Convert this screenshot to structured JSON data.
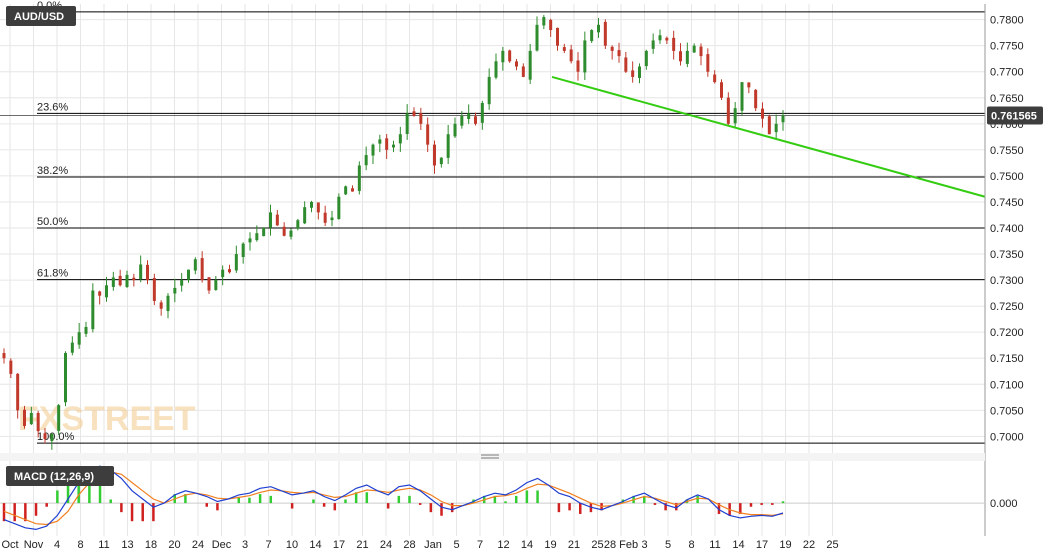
{
  "chart_data": [
    {
      "type": "candlestick",
      "title": "AUD/USD",
      "watermark": "FXSTREET",
      "colors": {
        "up": "#2e8b2e",
        "down": "#c0392b",
        "grid": "#e6e6e6",
        "trend": "#33cc11",
        "fib": "#000000"
      },
      "price_tag": "0.761565",
      "ylim": [
        0.697,
        0.783
      ],
      "y_ticks": [
        "0.7000",
        "0.7050",
        "0.7100",
        "0.7150",
        "0.7200",
        "0.7250",
        "0.7300",
        "0.7350",
        "0.7400",
        "0.7450",
        "0.7500",
        "0.7550",
        "0.7600",
        "0.7650",
        "0.7700",
        "0.7750",
        "0.7800"
      ],
      "x_ticks": [
        "Oct",
        "Nov",
        "4",
        "8",
        "11",
        "13",
        "18",
        "20",
        "24",
        "Dec",
        "3",
        "7",
        "10",
        "14",
        "17",
        "21",
        "24",
        "28",
        "Jan",
        "5",
        "7",
        "12",
        "14",
        "19",
        "21",
        "25",
        "28 Feb",
        "3",
        "5",
        "8",
        "11",
        "14",
        "17",
        "19",
        "22",
        "25"
      ],
      "fibonacci": [
        {
          "label": "0.0%",
          "price": 0.7815
        },
        {
          "label": "23.6%",
          "price": 0.762
        },
        {
          "label": "38.2%",
          "price": 0.7498
        },
        {
          "label": "50.0%",
          "price": 0.74
        },
        {
          "label": "61.8%",
          "price": 0.7301
        },
        {
          "label": "100.0%",
          "price": 0.6987
        }
      ],
      "trendline": {
        "start_price": 0.769,
        "end_price": 0.746
      },
      "closes": [
        0.715,
        0.712,
        0.705,
        0.702,
        0.7045,
        0.701,
        0.6995,
        0.7005,
        0.706,
        0.716,
        0.718,
        0.72,
        0.721,
        0.728,
        0.727,
        0.729,
        0.7305,
        0.729,
        0.731,
        0.73,
        0.733,
        0.73,
        0.726,
        0.7245,
        0.727,
        0.7285,
        0.73,
        0.732,
        0.734,
        0.73,
        0.728,
        0.73,
        0.732,
        0.7315,
        0.735,
        0.737,
        0.738,
        0.739,
        0.74,
        0.743,
        0.7405,
        0.7385,
        0.7395,
        0.7415,
        0.744,
        0.745,
        0.743,
        0.741,
        0.742,
        0.746,
        0.748,
        0.747,
        0.752,
        0.754,
        0.756,
        0.757,
        0.755,
        0.756,
        0.758,
        0.762,
        0.7615,
        0.76,
        0.756,
        0.752,
        0.7535,
        0.758,
        0.76,
        0.7615,
        0.762,
        0.76,
        0.764,
        0.769,
        0.772,
        0.774,
        0.772,
        0.771,
        0.769,
        0.774,
        0.779,
        0.7805,
        0.778,
        0.775,
        0.774,
        0.772,
        0.77,
        0.776,
        0.778,
        0.779,
        0.775,
        0.774,
        0.773,
        0.77,
        0.769,
        0.771,
        0.774,
        0.776,
        0.777,
        0.776,
        0.774,
        0.772,
        0.774,
        0.775,
        0.773,
        0.77,
        0.768,
        0.765,
        0.76,
        0.763,
        0.768,
        0.767,
        0.763,
        0.761,
        0.758,
        0.76,
        0.7616
      ],
      "macd": {
        "label": "MACD (12,26,9)",
        "zero_label": "0.000",
        "line": [
          -0.002,
          -0.0025,
          -0.003,
          -0.0032,
          -0.0028,
          -0.0015,
          0.0005,
          0.0025,
          0.004,
          0.0045,
          0.004,
          0.003,
          0.0015,
          0.0005,
          -0.0005,
          0.0,
          0.001,
          0.0015,
          0.0012,
          0.0008,
          0.0002,
          0.0005,
          0.001,
          0.0012,
          0.0018,
          0.002,
          0.0015,
          0.001,
          0.0012,
          0.0015,
          0.0008,
          0.0003,
          0.001,
          0.0018,
          0.0022,
          0.0015,
          0.001,
          0.002,
          0.0022,
          0.0015,
          0.0005,
          -0.0005,
          -0.0008,
          -0.0003,
          0.0002,
          0.0008,
          0.0012,
          0.001,
          0.0016,
          0.0025,
          0.003,
          0.0022,
          0.0012,
          0.0008,
          0.0,
          -0.0005,
          -0.0008,
          -0.0003,
          0.0002,
          0.0008,
          0.0012,
          0.0005,
          -0.0002,
          -0.0006,
          0.0004,
          0.001,
          0.0005,
          -0.0008,
          -0.0015,
          -0.0018,
          -0.0016,
          -0.0015,
          -0.0016,
          -0.0012
        ],
        "signal": [
          -0.001,
          -0.0015,
          -0.002,
          -0.0025,
          -0.0026,
          -0.0022,
          -0.001,
          0.001,
          0.0025,
          0.0035,
          0.0038,
          0.0035,
          0.0025,
          0.0015,
          0.0005,
          0.0,
          0.0005,
          0.001,
          0.0012,
          0.001,
          0.0006,
          0.0005,
          0.0007,
          0.0009,
          0.0013,
          0.0016,
          0.0015,
          0.0013,
          0.0012,
          0.0013,
          0.001,
          0.0007,
          0.0008,
          0.0012,
          0.0016,
          0.0015,
          0.0013,
          0.0016,
          0.0018,
          0.0016,
          0.001,
          0.0002,
          -0.0003,
          -0.0003,
          0.0,
          0.0004,
          0.0008,
          0.0009,
          0.0012,
          0.0018,
          0.0023,
          0.0022,
          0.0017,
          0.0012,
          0.0006,
          0.0,
          -0.0004,
          -0.0003,
          0.0,
          0.0004,
          0.0008,
          0.0006,
          0.0002,
          -0.0002,
          0.0002,
          0.0006,
          0.0005,
          -0.0002,
          -0.0008,
          -0.0012,
          -0.0014,
          -0.0014,
          -0.0015,
          -0.0013
        ]
      }
    }
  ]
}
